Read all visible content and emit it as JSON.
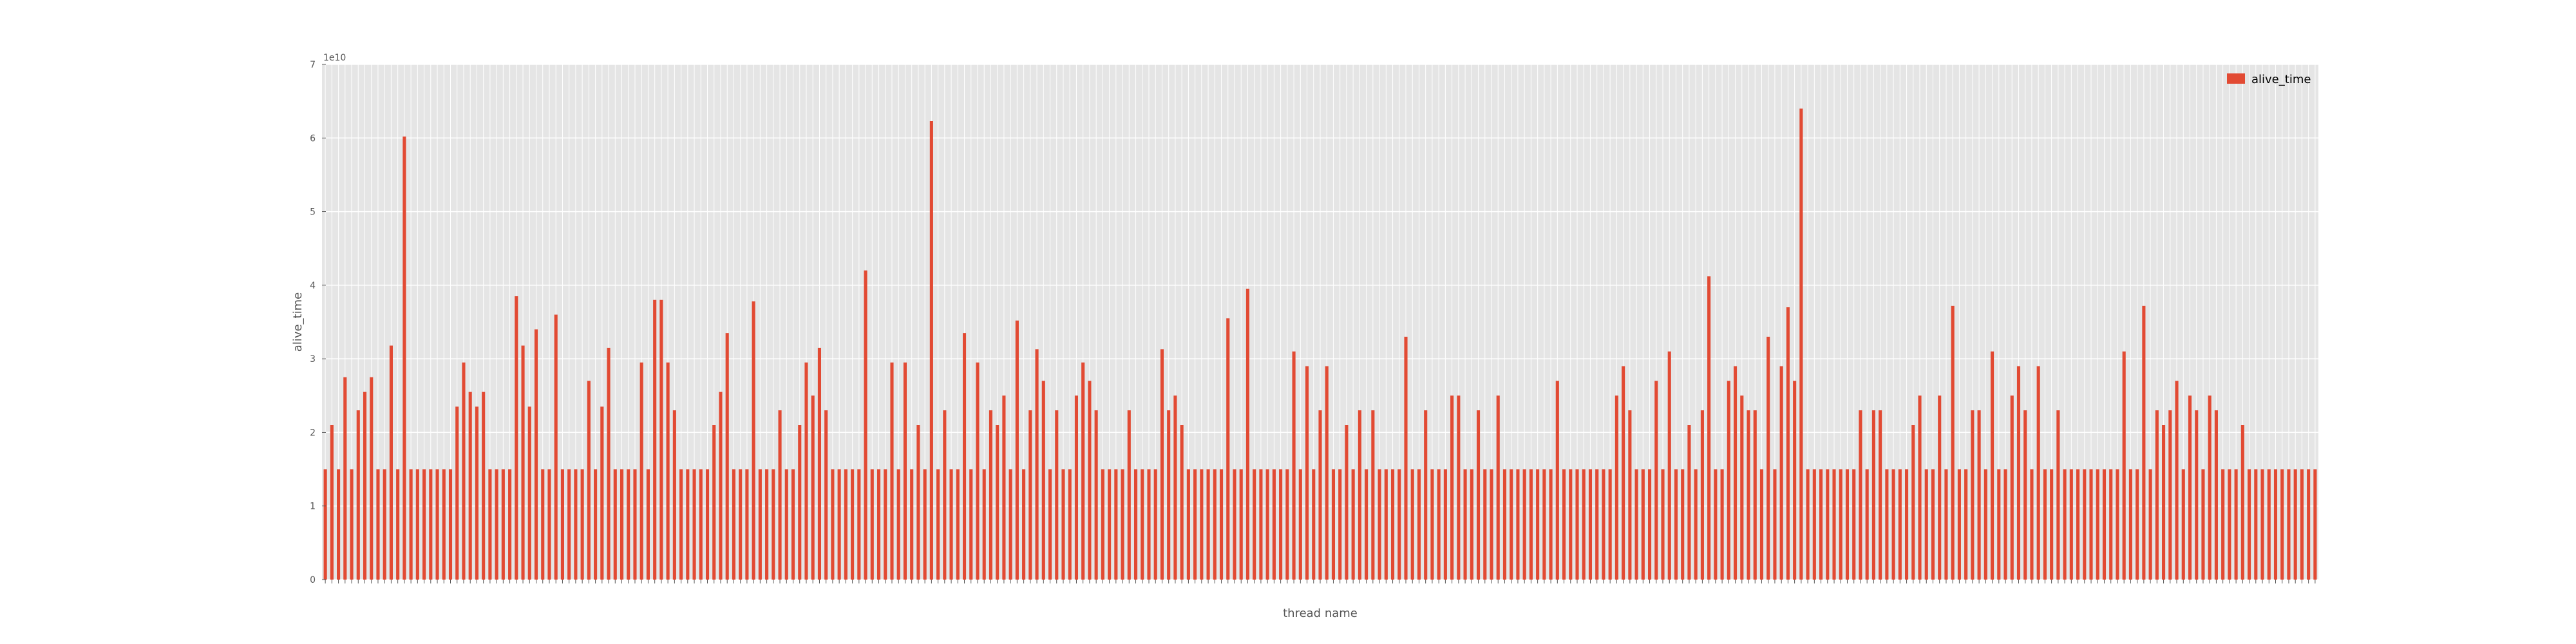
{
  "chart_data": {
    "type": "bar",
    "title": "",
    "xlabel": "thread name",
    "ylabel": "alive_time",
    "y_offset_text": "1e10",
    "ylim": [
      0,
      7
    ],
    "yticks": [
      "0",
      "1",
      "2",
      "3",
      "4",
      "5",
      "6",
      "7"
    ],
    "grid": true,
    "legend_position": "top-right",
    "colors": {
      "bar": "#E24A33",
      "plot_bg": "#E5E5E5",
      "grid": "#FFFFFF"
    },
    "series": [
      {
        "name": "alive_time",
        "values": [
          1.5,
          2.1,
          1.5,
          2.75,
          1.5,
          2.3,
          2.55,
          2.75,
          1.5,
          1.5,
          3.18,
          1.5,
          6.02,
          1.5,
          1.5,
          1.5,
          1.5,
          1.5,
          1.5,
          1.5,
          2.35,
          2.95,
          2.55,
          2.35,
          2.55,
          1.5,
          1.5,
          1.5,
          1.5,
          3.85,
          3.18,
          2.35,
          3.4,
          1.5,
          1.5,
          3.6,
          1.5,
          1.5,
          1.5,
          1.5,
          2.7,
          1.5,
          2.35,
          3.15,
          1.5,
          1.5,
          1.5,
          1.5,
          2.95,
          1.5,
          3.8,
          3.8,
          2.95,
          2.3,
          1.5,
          1.5,
          1.5,
          1.5,
          1.5,
          2.1,
          2.55,
          3.35,
          1.5,
          1.5,
          1.5,
          3.78,
          1.5,
          1.5,
          1.5,
          2.3,
          1.5,
          1.5,
          2.1,
          2.95,
          2.5,
          3.15,
          2.3,
          1.5,
          1.5,
          1.5,
          1.5,
          1.5,
          4.2,
          1.5,
          1.5,
          1.5,
          2.95,
          1.5,
          2.95,
          1.5,
          2.1,
          1.5,
          6.23,
          1.5,
          2.3,
          1.5,
          1.5,
          3.35,
          1.5,
          2.95,
          1.5,
          2.3,
          2.1,
          2.5,
          1.5,
          3.52,
          1.5,
          2.3,
          3.13,
          2.7,
          1.5,
          2.3,
          1.5,
          1.5,
          2.5,
          2.95,
          2.7,
          2.3,
          1.5,
          1.5,
          1.5,
          1.5,
          2.3,
          1.5,
          1.5,
          1.5,
          1.5,
          3.13,
          2.3,
          2.5,
          2.1,
          1.5,
          1.5,
          1.5,
          1.5,
          1.5,
          1.5,
          3.55,
          1.5,
          1.5,
          3.95,
          1.5,
          1.5,
          1.5,
          1.5,
          1.5,
          1.5,
          3.1,
          1.5,
          2.9,
          1.5,
          2.3,
          2.9,
          1.5,
          1.5,
          2.1,
          1.5,
          2.3,
          1.5,
          2.3,
          1.5,
          1.5,
          1.5,
          1.5,
          3.3,
          1.5,
          1.5,
          2.3,
          1.5,
          1.5,
          1.5,
          2.5,
          2.5,
          1.5,
          1.5,
          2.3,
          1.5,
          1.5,
          2.5,
          1.5,
          1.5,
          1.5,
          1.5,
          1.5,
          1.5,
          1.5,
          1.5,
          2.7,
          1.5,
          1.5,
          1.5,
          1.5,
          1.5,
          1.5,
          1.5,
          1.5,
          2.5,
          2.9,
          2.3,
          1.5,
          1.5,
          1.5,
          2.7,
          1.5,
          3.1,
          1.5,
          1.5,
          2.1,
          1.5,
          2.3,
          4.12,
          1.5,
          1.5,
          2.7,
          2.9,
          2.5,
          2.3,
          2.3,
          1.5,
          3.3,
          1.5,
          2.9,
          3.7,
          2.7,
          6.4,
          1.5,
          1.5,
          1.5,
          1.5,
          1.5,
          1.5,
          1.5,
          1.5,
          2.3,
          1.5,
          2.3,
          2.3,
          1.5,
          1.5,
          1.5,
          1.5,
          2.1,
          2.5,
          1.5,
          1.5,
          2.5,
          1.5,
          3.72,
          1.5,
          1.5,
          2.3,
          2.3,
          1.5,
          3.1,
          1.5,
          1.5,
          2.5,
          2.9,
          2.3,
          1.5,
          2.9,
          1.5,
          1.5,
          2.3,
          1.5,
          1.5,
          1.5,
          1.5,
          1.5,
          1.5,
          1.5,
          1.5,
          1.5,
          3.1,
          1.5,
          1.5,
          3.72,
          1.5,
          2.3,
          2.1,
          2.3,
          2.7,
          1.5,
          2.5,
          2.3,
          1.5,
          2.5,
          2.3,
          1.5,
          1.5,
          1.5,
          2.1,
          1.5,
          1.5,
          1.5,
          1.5,
          1.5,
          1.5,
          1.5,
          1.5,
          1.5,
          1.5,
          1.5
        ]
      }
    ]
  }
}
